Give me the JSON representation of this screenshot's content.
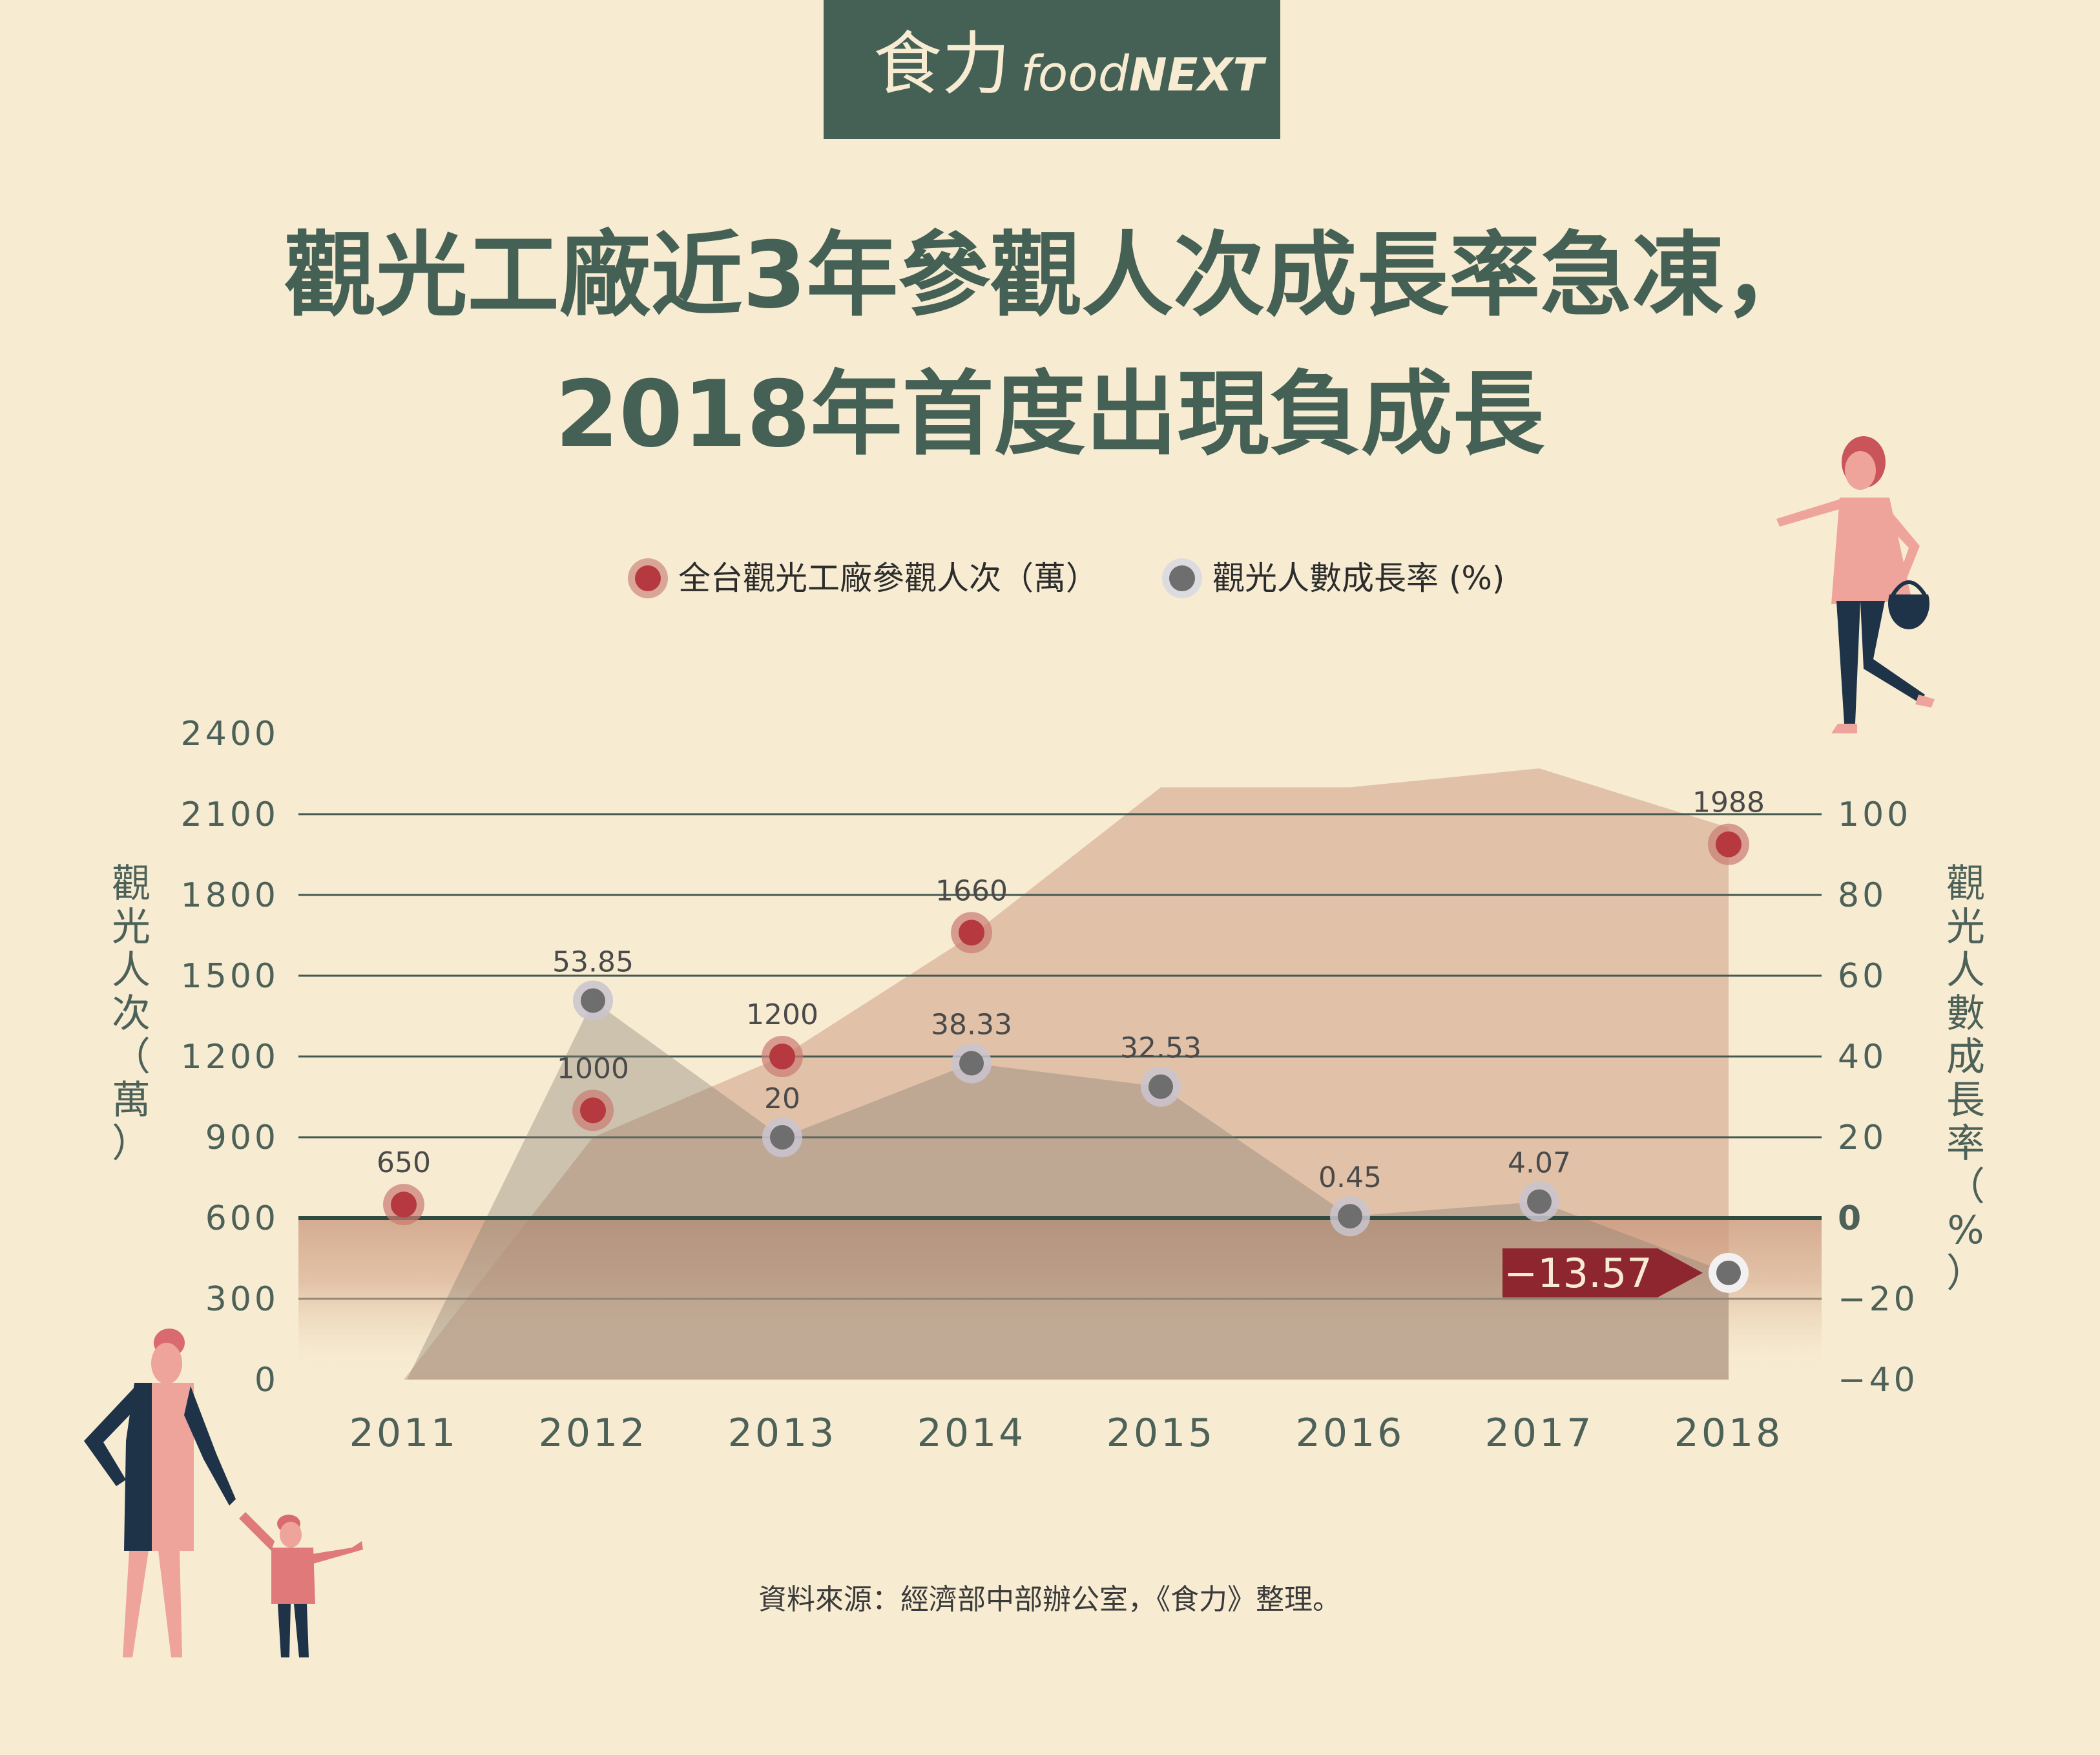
{
  "logo": {
    "cn": "食力",
    "en_food": "food",
    "en_next": "NEXT"
  },
  "title": {
    "line1": "觀光工廠近3年參觀人次成長率急凍，",
    "line2": "2018年首度出現負成長"
  },
  "legend": {
    "visitors": "全台觀光工廠參觀人次（萬）",
    "growth": "觀光人數成長率 (%)"
  },
  "y_left_title": [
    "觀",
    "光",
    "人",
    "次",
    "（",
    "萬",
    "）"
  ],
  "y_right_title": [
    "觀",
    "光",
    "人",
    "數",
    "成",
    "長",
    "率",
    "（",
    "%",
    "）"
  ],
  "source": "資料來源：經濟部中部辦公室，《食力》整理。",
  "colors": {
    "visitors_dot": "#b5393f",
    "growth_dot": "#6e6e6e",
    "background": "#f7ecd2",
    "dark_green": "#456155",
    "highlight": "#8e2630"
  },
  "chart_data": {
    "type": "line",
    "categories": [
      "2011",
      "2012",
      "2013",
      "2014",
      "2015",
      "2016",
      "2017",
      "2018"
    ],
    "y_left_ticks": [
      "0",
      "300",
      "600",
      "900",
      "1200",
      "1500",
      "1800",
      "2100",
      "2400"
    ],
    "y_right_ticks": [
      "−40",
      "−20",
      "0",
      "20",
      "40",
      "60",
      "80",
      "100"
    ],
    "ylim_left": [
      0,
      2400
    ],
    "ylim_right": [
      -40,
      100
    ],
    "series": [
      {
        "name": "全台觀光工廠參觀人次（萬）",
        "axis": "left",
        "values": [
          650,
          1000,
          1200,
          1660,
          null,
          null,
          null,
          1988
        ],
        "labels": [
          "650",
          "1000",
          "1200",
          "1660",
          "",
          "",
          "",
          "1988"
        ],
        "area": [
          0,
          900,
          1200,
          1650,
          2200,
          2200,
          2270,
          2050
        ]
      },
      {
        "name": "觀光人數成長率 (%)",
        "axis": "right",
        "values": [
          null,
          53.85,
          20,
          38.33,
          32.53,
          0.45,
          4.07,
          -13.57
        ],
        "labels": [
          "",
          "53.85",
          "20",
          "38.33",
          "32.53",
          "0.45",
          "4.07",
          "−13.57"
        ],
        "area_start": -40
      }
    ],
    "highlight": {
      "category": "2018",
      "label": "−13.57"
    }
  }
}
